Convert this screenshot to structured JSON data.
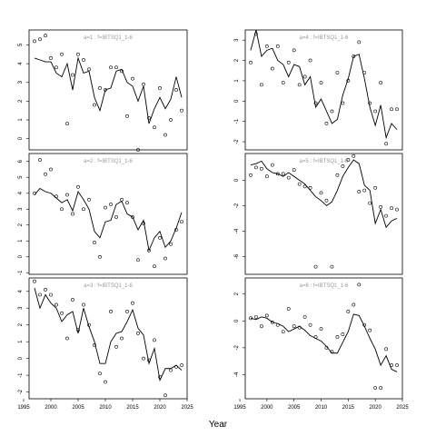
{
  "xlabel": "Year",
  "chart_data": [
    {
      "type": "line",
      "title": "a=1 : f=IBTSQ1_1-6",
      "xlim": [
        1996,
        2025
      ],
      "ylim": [
        -0.6,
        5.8
      ],
      "yticks": [
        0,
        1,
        2,
        3,
        4,
        5
      ],
      "xticks": [
        1995,
        2000,
        2005,
        2010,
        2015,
        2020,
        2025
      ],
      "line": {
        "x": [
          1997,
          1998,
          1999,
          2000,
          2001,
          2002,
          2003,
          2004,
          2005,
          2006,
          2007,
          2008,
          2009,
          2010,
          2011,
          2012,
          2013,
          2014,
          2015,
          2016,
          2017,
          2018,
          2019,
          2020,
          2021,
          2022,
          2023,
          2024
        ],
        "y": [
          4.3,
          4.2,
          4.1,
          4.1,
          3.5,
          3.3,
          4.0,
          2.6,
          4.3,
          3.5,
          3.6,
          2.2,
          1.5,
          2.6,
          2.7,
          3.6,
          3.7,
          3.0,
          2.8,
          2.0,
          2.8,
          0.8,
          1.6,
          2.2,
          1.6,
          2.1,
          3.3,
          2.2
        ]
      },
      "points": {
        "x": [
          1997,
          1998,
          1999,
          2000,
          2001,
          2002,
          2003,
          2004,
          2005,
          2006,
          2007,
          2008,
          2009,
          2010,
          2011,
          2012,
          2013,
          2014,
          2015,
          2016,
          2017,
          2018,
          2019,
          2020,
          2021,
          2022,
          2023,
          2024
        ],
        "y": [
          5.2,
          5.3,
          5.5,
          4.3,
          3.8,
          4.5,
          0.8,
          3.4,
          4.5,
          4.2,
          3.7,
          1.8,
          2.7,
          2.6,
          3.8,
          3.8,
          3.6,
          1.2,
          3.2,
          -0.6,
          2.9,
          1.1,
          0.6,
          2.7,
          0.2,
          1.0,
          2.6,
          1.5
        ]
      }
    },
    {
      "type": "line",
      "title": "a=4 : f=IBTSQ1_1-6",
      "xlim": [
        1996,
        2025
      ],
      "ylim": [
        -2.4,
        3.5
      ],
      "yticks": [
        -2,
        -1,
        0,
        1,
        2,
        3
      ],
      "xticks": [
        1995,
        2000,
        2005,
        2010,
        2015,
        2020,
        2025
      ],
      "line": {
        "x": [
          1997,
          1998,
          1999,
          2000,
          2001,
          2002,
          2003,
          2004,
          2005,
          2006,
          2007,
          2008,
          2009,
          2010,
          2011,
          2012,
          2013,
          2014,
          2015,
          2016,
          2017,
          2018,
          2019,
          2020,
          2021,
          2022,
          2023,
          2024
        ],
        "y": [
          2.5,
          3.5,
          2.2,
          2.5,
          2.6,
          2.0,
          1.8,
          1.2,
          1.8,
          1.7,
          0.8,
          1.2,
          -0.3,
          0.1,
          -0.5,
          -1.1,
          -0.9,
          0.3,
          1.1,
          2.2,
          2.3,
          1.1,
          -0.3,
          -1.2,
          -0.2,
          -1.8,
          -1.1,
          -1.4
        ]
      },
      "points": {
        "x": [
          1997,
          1998,
          1999,
          2000,
          2001,
          2002,
          2003,
          2004,
          2005,
          2006,
          2007,
          2008,
          2009,
          2010,
          2011,
          2012,
          2013,
          2014,
          2015,
          2016,
          2017,
          2018,
          2019,
          2020,
          2021,
          2022,
          2023,
          2024
        ],
        "y": [
          1.9,
          3.3,
          0.8,
          2.7,
          1.6,
          2.7,
          0.9,
          1.9,
          2.5,
          0.8,
          1.2,
          2.0,
          -0.1,
          0.9,
          -1.1,
          -0.5,
          1.4,
          -0.1,
          1.0,
          2.2,
          2.9,
          1.4,
          -0.1,
          -0.5,
          0.9,
          -2.1,
          -0.4,
          -0.4
        ]
      }
    },
    {
      "type": "line",
      "title": "a=2 : f=IBTSQ1_1-6",
      "xlim": [
        1996,
        2025
      ],
      "ylim": [
        -1.1,
        6.5
      ],
      "yticks": [
        -1,
        0,
        1,
        2,
        3,
        4,
        5,
        6
      ],
      "xticks": [
        1995,
        2000,
        2005,
        2010,
        2015,
        2020,
        2025
      ],
      "line": {
        "x": [
          1997,
          1998,
          1999,
          2000,
          2001,
          2002,
          2003,
          2004,
          2005,
          2006,
          2007,
          2008,
          2009,
          2010,
          2011,
          2012,
          2013,
          2014,
          2015,
          2016,
          2017,
          2018,
          2019,
          2020,
          2021,
          2022,
          2023,
          2024
        ],
        "y": [
          3.9,
          4.3,
          4.1,
          4.0,
          3.7,
          3.4,
          3.6,
          2.9,
          4.1,
          3.6,
          3.0,
          1.6,
          1.2,
          2.2,
          2.3,
          3.3,
          3.5,
          2.7,
          2.5,
          1.7,
          2.3,
          0.4,
          1.2,
          1.6,
          0.6,
          1.0,
          1.8,
          2.8
        ]
      },
      "points": {
        "x": [
          1997,
          1998,
          1999,
          2000,
          2001,
          2002,
          2003,
          2004,
          2005,
          2006,
          2007,
          2008,
          2009,
          2010,
          2011,
          2012,
          2013,
          2014,
          2015,
          2016,
          2017,
          2018,
          2019,
          2020,
          2021,
          2022,
          2023,
          2024
        ],
        "y": [
          4.0,
          6.1,
          5.2,
          5.5,
          3.8,
          3.0,
          3.9,
          2.7,
          4.4,
          3.0,
          3.6,
          0.9,
          0.0,
          3.1,
          3.3,
          2.5,
          3.6,
          3.4,
          2.5,
          -0.2,
          2.1,
          0.4,
          -0.6,
          1.2,
          -0.1,
          0.8,
          1.7,
          2.2
        ]
      }
    },
    {
      "type": "line",
      "title": "a=5 : f=IBTSQ1_1-6",
      "xlim": [
        1996,
        2025
      ],
      "ylim": [
        -7.4,
        2.1
      ],
      "yticks": [
        -6,
        -4,
        -2,
        0
      ],
      "xticks": [
        1995,
        2000,
        2005,
        2010,
        2015,
        2020,
        2025
      ],
      "line": {
        "x": [
          1997,
          1998,
          1999,
          2000,
          2001,
          2002,
          2003,
          2004,
          2005,
          2006,
          2007,
          2008,
          2009,
          2010,
          2011,
          2012,
          2013,
          2014,
          2015,
          2016,
          2017,
          2018,
          2019,
          2020,
          2021,
          2022,
          2023,
          2024
        ],
        "y": [
          1.2,
          1.3,
          1.5,
          0.9,
          0.6,
          0.5,
          0.3,
          0.6,
          0.3,
          0.0,
          -0.3,
          -0.8,
          -1.3,
          -1.6,
          -2.0,
          -1.7,
          -0.8,
          0.3,
          1.0,
          1.6,
          1.3,
          -0.4,
          -0.8,
          -3.4,
          -2.3,
          -3.7,
          -3.2,
          -3.0
        ]
      },
      "points": {
        "x": [
          1997,
          1998,
          1999,
          2000,
          2001,
          2002,
          2003,
          2004,
          2005,
          2006,
          2007,
          2008,
          2009,
          2010,
          2011,
          2012,
          2013,
          2014,
          2015,
          2016,
          2017,
          2018,
          2019,
          2020,
          2021,
          2022,
          2023,
          2024
        ],
        "y": [
          0.4,
          1.0,
          0.9,
          0.3,
          1.2,
          0.5,
          0.5,
          0.2,
          0.8,
          -0.3,
          -0.5,
          -0.6,
          -6.8,
          -1.0,
          -1.6,
          -6.8,
          0.4,
          1.1,
          1.6,
          1.9,
          -0.9,
          -0.8,
          -1.8,
          -0.6,
          -2.1,
          -2.8,
          -2.2,
          -2.3
        ]
      }
    },
    {
      "type": "line",
      "title": "a=3 : f=IBTSQ1_1-6",
      "xlim": [
        1996,
        2025
      ],
      "ylim": [
        -2.4,
        4.8
      ],
      "yticks": [
        -2,
        -1,
        0,
        1,
        2,
        3,
        4
      ],
      "xticks": [
        1995,
        2000,
        2005,
        2010,
        2015,
        2020,
        2025
      ],
      "line": {
        "x": [
          1997,
          1998,
          1999,
          2000,
          2001,
          2002,
          2003,
          2004,
          2005,
          2006,
          2007,
          2008,
          2009,
          2010,
          2011,
          2012,
          2013,
          2014,
          2015,
          2016,
          2017,
          2018,
          2019,
          2020,
          2021,
          2022,
          2023,
          2024
        ],
        "y": [
          4.2,
          3.0,
          3.8,
          3.3,
          3.0,
          2.2,
          2.6,
          2.8,
          1.5,
          3.0,
          1.9,
          1.0,
          -0.3,
          -0.3,
          1.0,
          1.5,
          1.6,
          2.2,
          2.9,
          1.8,
          1.4,
          -0.3,
          0.6,
          -1.3,
          -0.6,
          -0.6,
          -0.4,
          -0.7
        ]
      },
      "points": {
        "x": [
          1997,
          1998,
          1999,
          2000,
          2001,
          2002,
          2003,
          2004,
          2005,
          2006,
          2007,
          2008,
          2009,
          2010,
          2011,
          2012,
          2013,
          2014,
          2015,
          2016,
          2017,
          2018,
          2019,
          2020,
          2021,
          2022,
          2023,
          2024
        ],
        "y": [
          4.6,
          3.8,
          4.1,
          3.8,
          3.2,
          2.7,
          1.2,
          3.5,
          1.7,
          3.2,
          2.0,
          0.8,
          -0.9,
          -1.4,
          2.8,
          0.7,
          1.2,
          2.8,
          3.3,
          1.5,
          0.0,
          -0.1,
          1.1,
          -1.1,
          -2.2,
          -0.7,
          -0.5,
          -0.4
        ]
      }
    },
    {
      "type": "line",
      "title": "a=6 : f=IBTSQ1_1-6",
      "xlim": [
        1996,
        2025
      ],
      "ylim": [
        -5.8,
        3.2
      ],
      "yticks": [
        -4,
        -2,
        0,
        2
      ],
      "xticks": [
        1995,
        2000,
        2005,
        2010,
        2015,
        2020,
        2025
      ],
      "line": {
        "x": [
          1997,
          1998,
          1999,
          2000,
          2001,
          2002,
          2003,
          2004,
          2005,
          2006,
          2007,
          2008,
          2009,
          2010,
          2011,
          2012,
          2013,
          2014,
          2015,
          2016,
          2017,
          2018,
          2019,
          2020,
          2021,
          2022,
          2023,
          2024
        ],
        "y": [
          0.2,
          0.1,
          0.3,
          0.2,
          -0.1,
          -0.2,
          -0.4,
          -0.8,
          -0.6,
          -0.4,
          -0.7,
          -1.1,
          -1.3,
          -1.5,
          -1.9,
          -2.4,
          -2.4,
          -1.6,
          -0.8,
          0.5,
          0.4,
          -0.4,
          -1.3,
          -2.1,
          -3.3,
          -2.6,
          -3.6,
          -3.8
        ]
      },
      "points": {
        "x": [
          1997,
          1998,
          1999,
          2000,
          2001,
          2002,
          2003,
          2004,
          2005,
          2006,
          2007,
          2008,
          2009,
          2010,
          2011,
          2012,
          2013,
          2014,
          2015,
          2016,
          2017,
          2018,
          2019,
          2020,
          2021,
          2022,
          2023,
          2024
        ],
        "y": [
          0.2,
          0.3,
          -0.4,
          0.4,
          -0.1,
          -0.3,
          -0.8,
          0.9,
          -0.4,
          -0.5,
          0.3,
          -0.3,
          -1.2,
          -0.6,
          -2.0,
          -2.3,
          -1.2,
          -1.0,
          0.7,
          1.2,
          2.7,
          -0.3,
          -0.7,
          -5.0,
          -5.0,
          -2.1,
          -3.3,
          -3.3
        ]
      }
    }
  ]
}
